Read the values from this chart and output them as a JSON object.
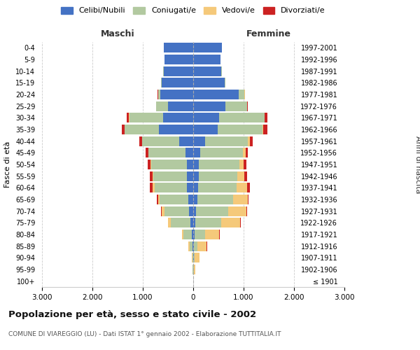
{
  "age_groups": [
    "100+",
    "95-99",
    "90-94",
    "85-89",
    "80-84",
    "75-79",
    "70-74",
    "65-69",
    "60-64",
    "55-59",
    "50-54",
    "45-49",
    "40-44",
    "35-39",
    "30-34",
    "25-29",
    "20-24",
    "15-19",
    "10-14",
    "5-9",
    "0-4"
  ],
  "birth_years": [
    "≤ 1901",
    "1902-1906",
    "1907-1911",
    "1912-1916",
    "1917-1921",
    "1922-1926",
    "1927-1931",
    "1932-1936",
    "1937-1941",
    "1942-1946",
    "1947-1951",
    "1952-1956",
    "1957-1961",
    "1962-1966",
    "1967-1971",
    "1972-1976",
    "1977-1981",
    "1982-1986",
    "1987-1991",
    "1992-1996",
    "1997-2001"
  ],
  "males": {
    "celibi": [
      2,
      3,
      5,
      15,
      30,
      60,
      80,
      100,
      130,
      130,
      130,
      155,
      280,
      680,
      600,
      500,
      650,
      630,
      590,
      570,
      590
    ],
    "coniugati": [
      2,
      5,
      15,
      55,
      160,
      380,
      490,
      560,
      640,
      660,
      700,
      730,
      730,
      680,
      670,
      230,
      50,
      10,
      2,
      0,
      0
    ],
    "vedovi": [
      0,
      2,
      8,
      25,
      35,
      55,
      50,
      40,
      30,
      20,
      15,
      10,
      8,
      5,
      3,
      2,
      1,
      0,
      0,
      0,
      0
    ],
    "divorziati": [
      0,
      0,
      1,
      2,
      3,
      10,
      15,
      25,
      55,
      55,
      55,
      55,
      55,
      55,
      40,
      10,
      5,
      2,
      0,
      0,
      0
    ]
  },
  "females": {
    "nubili": [
      2,
      5,
      10,
      20,
      30,
      45,
      60,
      80,
      100,
      110,
      115,
      140,
      230,
      480,
      510,
      640,
      900,
      620,
      560,
      545,
      575
    ],
    "coniugate": [
      2,
      5,
      20,
      70,
      210,
      510,
      630,
      710,
      760,
      770,
      800,
      840,
      860,
      900,
      900,
      430,
      120,
      20,
      5,
      0,
      0
    ],
    "vedove": [
      2,
      30,
      90,
      180,
      280,
      380,
      370,
      290,
      210,
      130,
      90,
      55,
      35,
      15,
      8,
      5,
      2,
      1,
      0,
      0,
      0
    ],
    "divorziate": [
      0,
      0,
      1,
      2,
      3,
      10,
      15,
      20,
      55,
      60,
      55,
      55,
      60,
      80,
      55,
      15,
      5,
      2,
      0,
      0,
      0
    ]
  },
  "colors": {
    "celibi": "#4472C4",
    "coniugati": "#B2C9A0",
    "vedovi": "#F5C97A",
    "divorziati": "#CC2222"
  },
  "xlim": 3000,
  "title": "Popolazione per età, sesso e stato civile - 2002",
  "subtitle": "COMUNE DI VIAREGGIO (LU) - Dati ISTAT 1° gennaio 2002 - Elaborazione TUTTITALIA.IT",
  "ylabel_left": "Fasce di età",
  "ylabel_right": "Anni di nascita",
  "xlabel_left": "Maschi",
  "xlabel_right": "Femmine",
  "background_color": "#ffffff",
  "grid_color": "#cccccc"
}
